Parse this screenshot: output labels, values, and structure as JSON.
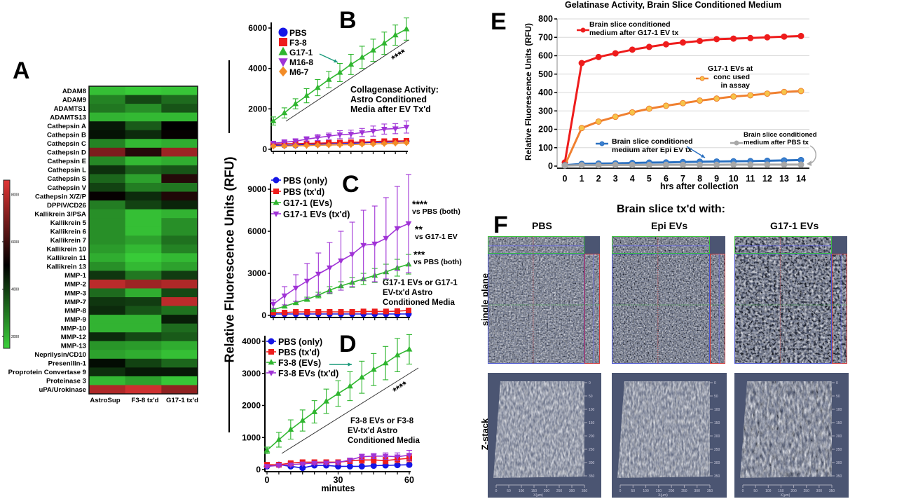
{
  "panel_labels": {
    "A": "A",
    "B": "B",
    "C": "C",
    "D": "D",
    "E": "E",
    "F": "F"
  },
  "shared_ylabel": "Relative Fluorescence Units (RFU)",
  "chart_data": [
    {
      "id": "A",
      "type": "heatmap",
      "columns": [
        "AstroSup",
        "F3-8 tx'd",
        "G17-1 tx'd"
      ],
      "rows": [
        "ADAM8",
        "ADAM9",
        "ADAMTS1",
        "ADAMTS13",
        "Cathepsin A",
        "Cathepsin B",
        "Cathepsin C",
        "Cathepsin D",
        "Cathepsin E",
        "Cathepsin L",
        "Cathepsin S",
        "Cathepsin V",
        "Cathepsin X/Z/P",
        "DPPIV/CD26",
        "Kallikrein 3/PSA",
        "Kallikrein 5",
        "Kallikrein 6",
        "Kallikrein 7",
        "Kallikrein 10",
        "Kallikrein 11",
        "Kallikrein 13",
        "MMP-1",
        "MMP-2",
        "MMP-3",
        "MMP-7",
        "MMP-8",
        "MMP-9",
        "MMP-10",
        "MMP-12",
        "MMP-13",
        "Neprilysin/CD10",
        "Presenilin-1",
        "Proprotein Convertase 9",
        "Proteinase 3",
        "uPA/Urokinase"
      ],
      "values": [
        [
          1800,
          1600,
          1700
        ],
        [
          2800,
          3800,
          3200
        ],
        [
          3000,
          2600,
          3600
        ],
        [
          2000,
          1900,
          1900
        ],
        [
          4600,
          3500,
          5000
        ],
        [
          4700,
          4300,
          5100
        ],
        [
          2800,
          1900,
          2100
        ],
        [
          7000,
          5600,
          7500
        ],
        [
          2700,
          1900,
          2100
        ],
        [
          4200,
          3400,
          3600
        ],
        [
          3300,
          2300,
          5600
        ],
        [
          3900,
          2900,
          3000
        ],
        [
          5100,
          4300,
          5500
        ],
        [
          2900,
          3900,
          4400
        ],
        [
          2600,
          1800,
          2000
        ],
        [
          2600,
          1800,
          2600
        ],
        [
          2600,
          1800,
          2600
        ],
        [
          2600,
          2300,
          3100
        ],
        [
          2400,
          1900,
          2800
        ],
        [
          2100,
          1600,
          1900
        ],
        [
          2600,
          1900,
          2300
        ],
        [
          4100,
          3000,
          4000
        ],
        [
          8000,
          7500,
          7800
        ],
        [
          3200,
          2100,
          3800
        ],
        [
          4100,
          4000,
          8000
        ],
        [
          4300,
          3600,
          3100
        ],
        [
          2000,
          2000,
          4500
        ],
        [
          2000,
          2000,
          3200
        ],
        [
          4300,
          3800,
          3500
        ],
        [
          2500,
          2400,
          2100
        ],
        [
          2300,
          2100,
          1800
        ],
        [
          4800,
          3900,
          3300
        ],
        [
          4200,
          4600,
          4600
        ],
        [
          1900,
          2300,
          1700
        ],
        [
          7800,
          8300,
          7300
        ]
      ],
      "colorbar": {
        "ticks": [
          2000,
          4000,
          6000,
          8000
        ],
        "tick_labels": [
          "2000",
          "4000",
          "6000",
          "8000"
        ],
        "range": [
          1500,
          8600
        ],
        "low_color": "#3ad13a",
        "mid_color": "#000000",
        "high_color": "#e03434"
      }
    },
    {
      "id": "B",
      "type": "line",
      "x": [
        0,
        5,
        10,
        15,
        20,
        25,
        30,
        35,
        40,
        45,
        50,
        55,
        60
      ],
      "xlim": [
        0,
        60
      ],
      "ylim": [
        0,
        6000
      ],
      "yticks": [
        0,
        2000,
        4000,
        6000
      ],
      "xticks": [],
      "xlabel": "",
      "annotation": [
        "Collagenase Activity:",
        "Astro Conditioned",
        "Media after EV Tx'd"
      ],
      "significance": "****",
      "legend_position": "top-left",
      "series": [
        {
          "name": "PBS",
          "color": "#1515e6",
          "marker": "circle",
          "values": [
            200,
            200,
            200,
            250,
            250,
            280,
            300,
            300,
            320,
            350,
            350,
            370,
            400
          ],
          "errors": [
            60,
            60,
            60,
            60,
            60,
            60,
            60,
            60,
            60,
            60,
            60,
            60,
            60
          ]
        },
        {
          "name": "F3-8",
          "color": "#ee1c1c",
          "marker": "square",
          "values": [
            250,
            270,
            280,
            290,
            300,
            320,
            330,
            350,
            360,
            380,
            400,
            410,
            420
          ],
          "errors": [
            60,
            60,
            60,
            60,
            60,
            60,
            60,
            60,
            60,
            60,
            60,
            60,
            60
          ]
        },
        {
          "name": "G17-1",
          "color": "#2fb62f",
          "marker": "triangle-up",
          "values": [
            1400,
            1800,
            2250,
            2650,
            3050,
            3450,
            3800,
            4200,
            4550,
            4900,
            5250,
            5650,
            5950
          ],
          "errors": [
            200,
            250,
            250,
            350,
            400,
            400,
            450,
            500,
            550,
            550,
            550,
            500,
            550
          ]
        },
        {
          "name": "M16-8",
          "color": "#a033d6",
          "marker": "triangle-down",
          "values": [
            300,
            350,
            400,
            500,
            580,
            650,
            720,
            750,
            830,
            900,
            1000,
            1020,
            1100
          ],
          "errors": [
            100,
            120,
            120,
            120,
            150,
            150,
            200,
            200,
            200,
            250,
            250,
            250,
            300
          ]
        },
        {
          "name": "M6-7",
          "color": "#f28c28",
          "marker": "diamond",
          "values": [
            150,
            160,
            170,
            180,
            200,
            210,
            220,
            230,
            250,
            260,
            280,
            300,
            320
          ],
          "errors": [
            40,
            40,
            40,
            40,
            40,
            40,
            40,
            40,
            40,
            40,
            40,
            40,
            40
          ]
        }
      ]
    },
    {
      "id": "C",
      "type": "line",
      "x": [
        0,
        5,
        10,
        15,
        20,
        25,
        30,
        35,
        40,
        45,
        50,
        55,
        60
      ],
      "xlim": [
        0,
        60
      ],
      "ylim": [
        0,
        9000
      ],
      "yticks": [
        0,
        3000,
        6000,
        9000
      ],
      "xticks": [],
      "xlabel": "",
      "annotation": [
        "G17-1 EVs or G17-1",
        "EV-tx'd Astro",
        "Conditioned Media"
      ],
      "stats": [
        {
          "stars": "****",
          "text": "vs PBS (both)"
        },
        {
          "stars": "**",
          "text": "vs G17-1 EV"
        },
        {
          "stars": "***",
          "text": "vs PBS (both)"
        }
      ],
      "legend_position": "top-left",
      "series": [
        {
          "name": "PBS (only)",
          "color": "#1515e6",
          "marker": "circle",
          "values": [
            100,
            100,
            100,
            100,
            100,
            100,
            100,
            100,
            100,
            100,
            100,
            100,
            100
          ],
          "errors": [
            50,
            50,
            50,
            50,
            50,
            50,
            50,
            50,
            50,
            50,
            50,
            50,
            50
          ]
        },
        {
          "name": "PBS (tx'd)",
          "color": "#ee1c1c",
          "marker": "square",
          "values": [
            200,
            200,
            250,
            250,
            250,
            250,
            250,
            250,
            280,
            280,
            280,
            300,
            350
          ],
          "errors": [
            60,
            60,
            60,
            60,
            60,
            60,
            60,
            60,
            60,
            60,
            60,
            60,
            60
          ]
        },
        {
          "name": "G17-1 (EVs)",
          "color": "#2fb62f",
          "marker": "triangle-up",
          "values": [
            400,
            650,
            900,
            1150,
            1450,
            1800,
            2100,
            2350,
            2600,
            2850,
            3100,
            3400,
            3650
          ],
          "errors": [
            100,
            100,
            100,
            150,
            200,
            250,
            300,
            350,
            400,
            500,
            550,
            600,
            700
          ]
        },
        {
          "name": "G17-1 EVs (tx'd)",
          "color": "#a033d6",
          "marker": "triangle-down",
          "values": [
            800,
            1400,
            1950,
            2450,
            2950,
            3400,
            3900,
            4350,
            5000,
            5100,
            5500,
            6200,
            6550
          ],
          "errors": [
            300,
            650,
            950,
            1250,
            1500,
            1800,
            2100,
            2300,
            2500,
            2700,
            2900,
            3000,
            3500
          ]
        }
      ]
    },
    {
      "id": "D",
      "type": "line",
      "x": [
        0,
        5,
        10,
        15,
        20,
        25,
        30,
        35,
        40,
        45,
        50,
        55,
        60
      ],
      "xlim": [
        0,
        60
      ],
      "ylim": [
        0,
        4000
      ],
      "yticks": [
        0,
        1000,
        2000,
        3000,
        4000
      ],
      "xticks": [
        0,
        30,
        60
      ],
      "xlabel": "minutes",
      "annotation": [
        "F3-8 EVs or F3-8",
        "EV-tx'd Astro",
        "Conditioned Media"
      ],
      "significance": "****",
      "legend_position": "top-left",
      "series": [
        {
          "name": "PBS (only)",
          "color": "#1515e6",
          "marker": "circle",
          "values": [
            100,
            150,
            100,
            50,
            130,
            130,
            100,
            100,
            100,
            120,
            130,
            140,
            150
          ],
          "errors": [
            40,
            40,
            40,
            40,
            40,
            40,
            40,
            40,
            40,
            40,
            40,
            40,
            40
          ]
        },
        {
          "name": "PBS (tx'd)",
          "color": "#ee1c1c",
          "marker": "square",
          "values": [
            150,
            150,
            200,
            230,
            230,
            230,
            230,
            270,
            300,
            300,
            280,
            320,
            350
          ],
          "errors": [
            50,
            50,
            50,
            60,
            60,
            60,
            60,
            80,
            100,
            100,
            100,
            110,
            110
          ]
        },
        {
          "name": "F3-8 (EVs)",
          "color": "#2fb62f",
          "marker": "triangle-up",
          "values": [
            600,
            930,
            1250,
            1530,
            1800,
            2130,
            2370,
            2600,
            2880,
            3120,
            3320,
            3570,
            3750
          ],
          "errors": [
            100,
            230,
            300,
            330,
            350,
            380,
            400,
            450,
            500,
            500,
            520,
            520,
            460
          ]
        },
        {
          "name": "F3-8 EVs (tx'd)",
          "color": "#a033d6",
          "marker": "triangle-down",
          "values": [
            100,
            130,
            150,
            180,
            200,
            210,
            220,
            300,
            400,
            420,
            420,
            400,
            450
          ],
          "errors": [
            40,
            40,
            40,
            40,
            40,
            50,
            50,
            60,
            80,
            80,
            100,
            120,
            150
          ]
        }
      ]
    },
    {
      "id": "E",
      "type": "line",
      "title": "Gelatinase Activity, Brain Slice Conditioned Medium",
      "x": [
        0,
        1,
        2,
        3,
        4,
        5,
        6,
        7,
        8,
        9,
        10,
        11,
        12,
        13,
        14
      ],
      "xlim": [
        0,
        14
      ],
      "ylim": [
        0,
        800
      ],
      "yticks": [
        0,
        100,
        200,
        300,
        400,
        500,
        600,
        700,
        800
      ],
      "xticks": [
        0,
        1,
        2,
        3,
        4,
        5,
        6,
        7,
        8,
        9,
        10,
        11,
        12,
        13,
        14
      ],
      "xlabel": "hrs after collection",
      "ylabel": "Relative Fluorescence Units (RFU)",
      "grid": true,
      "series": [
        {
          "name": "Brain slice conditioned medium after G17-1 EV tx",
          "label_lines": [
            "Brain slice conditioned",
            "medium after G17-1 EV tx"
          ],
          "color": "#ee1c1c",
          "fill": "#ee1c1c",
          "marker": "circle",
          "values": [
            20,
            560,
            593,
            613,
            633,
            648,
            662,
            672,
            680,
            690,
            693,
            696,
            700,
            704,
            707
          ]
        },
        {
          "name": "G17-1 EVs at conc used in assay",
          "label_lines": [
            "G17-1 EVs at",
            "conc used",
            "in assay"
          ],
          "color": "#f08030",
          "fill": "#f6c44a",
          "marker": "circle",
          "values": [
            5,
            207,
            242,
            268,
            292,
            312,
            328,
            342,
            356,
            367,
            378,
            385,
            394,
            403,
            408
          ]
        },
        {
          "name": "Brain slice conditioned medium after Epi EV tx",
          "label_lines": [
            "Brain slice conditioned",
            "medium after Epi EV tx"
          ],
          "color": "#2a70c0",
          "fill": "#3a7fd0",
          "marker": "circle",
          "values": [
            5,
            12,
            14,
            15,
            17,
            19,
            20,
            22,
            24,
            25,
            26,
            27,
            29,
            31,
            33
          ]
        },
        {
          "name": "Brain slice conditioned medium after PBS tx",
          "label_lines": [
            "Brain slice conditioned",
            "medium after PBS tx"
          ],
          "color": "#a8a8a8",
          "fill": "#a8a8a8",
          "marker": "circle",
          "values": [
            3,
            5,
            5,
            6,
            6,
            6,
            7,
            7,
            7,
            7,
            8,
            8,
            8,
            8,
            8
          ]
        }
      ]
    }
  ],
  "panel_F": {
    "title": "Brain slice tx'd with:",
    "columns": [
      "PBS",
      "Epi EVs",
      "G17-1 EVs"
    ],
    "rows": [
      "single plane",
      "Z-stack"
    ],
    "zstack_y_ticks": [
      "0",
      "50",
      "100",
      "150",
      "200",
      "250",
      "300",
      "350"
    ],
    "zstack_x_ticks": [
      "0",
      "50",
      "100",
      "150",
      "200",
      "250",
      "300",
      "350"
    ],
    "zstack_x_label": "X(µm)"
  }
}
